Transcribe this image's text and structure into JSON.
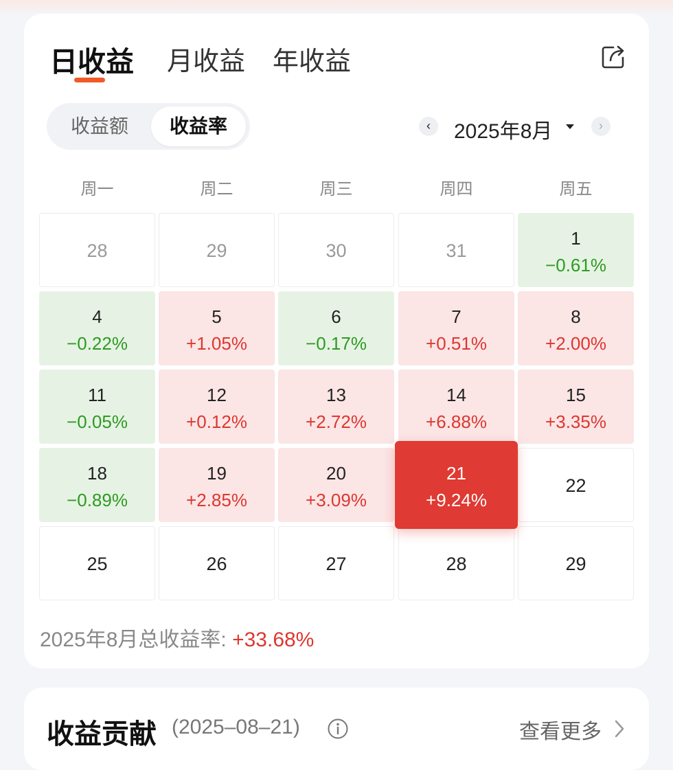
{
  "tabs": [
    "日收益",
    "月收益",
    "年收益"
  ],
  "segment": {
    "left": "收益额",
    "right": "收益率"
  },
  "month_nav": {
    "prev": "‹",
    "label": "2025年8月",
    "next": "›"
  },
  "weekdays": [
    "周一",
    "周二",
    "周三",
    "周四",
    "周五"
  ],
  "calendar": [
    [
      {
        "d": "28",
        "muted": true
      },
      {
        "d": "29",
        "muted": true
      },
      {
        "d": "30",
        "muted": true
      },
      {
        "d": "31",
        "muted": true
      },
      {
        "d": "1",
        "v": "−0.61%",
        "t": "green"
      }
    ],
    [
      {
        "d": "4",
        "v": "−0.22%",
        "t": "green"
      },
      {
        "d": "5",
        "v": "+1.05%",
        "t": "pink"
      },
      {
        "d": "6",
        "v": "−0.17%",
        "t": "green"
      },
      {
        "d": "7",
        "v": "+0.51%",
        "t": "pink"
      },
      {
        "d": "8",
        "v": "+2.00%",
        "t": "pink"
      }
    ],
    [
      {
        "d": "11",
        "v": "−0.05%",
        "t": "green"
      },
      {
        "d": "12",
        "v": "+0.12%",
        "t": "pink"
      },
      {
        "d": "13",
        "v": "+2.72%",
        "t": "pink"
      },
      {
        "d": "14",
        "v": "+6.88%",
        "t": "pink"
      },
      {
        "d": "15",
        "v": "+3.35%",
        "t": "pink"
      }
    ],
    [
      {
        "d": "18",
        "v": "−0.89%",
        "t": "green"
      },
      {
        "d": "19",
        "v": "+2.85%",
        "t": "pink"
      },
      {
        "d": "20",
        "v": "+3.09%",
        "t": "pink"
      },
      {
        "d": "21",
        "v": "+9.24%",
        "t": "sel"
      },
      {
        "d": "22"
      }
    ],
    [
      {
        "d": "25"
      },
      {
        "d": "26"
      },
      {
        "d": "27"
      },
      {
        "d": "28"
      },
      {
        "d": "29"
      }
    ]
  ],
  "summary": {
    "label": "2025年8月总收益率: ",
    "value": "+33.68%"
  },
  "contribution": {
    "title": "收益贡献",
    "date": "(2025–08–21)",
    "more": "查看更多"
  },
  "colors": {
    "accent": "#ef5a28",
    "up": "#dd3730",
    "down": "#2e9a22",
    "selected": "#df3a33"
  }
}
